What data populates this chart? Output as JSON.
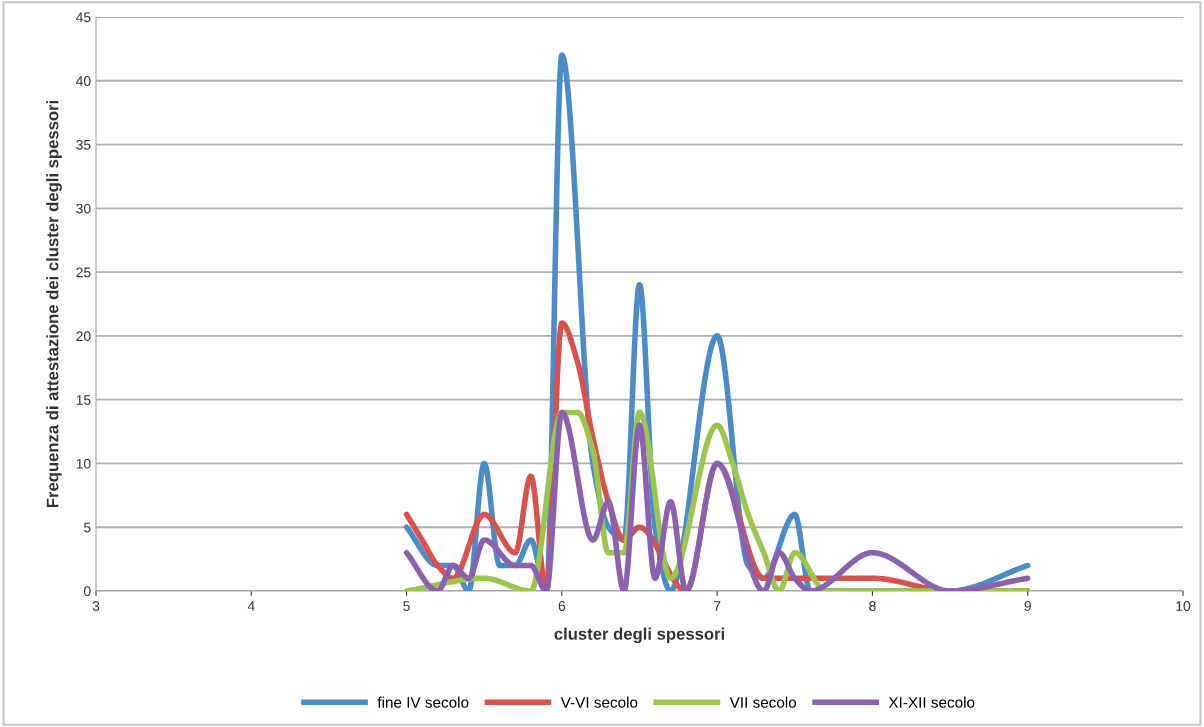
{
  "chart_data": {
    "type": "line",
    "xlabel": "cluster degli spessori",
    "ylabel": "Frequenza di attestazione dei cluster degli spessori",
    "xlim": [
      3,
      10
    ],
    "xticks": [
      3,
      4,
      5,
      6,
      7,
      8,
      9,
      10
    ],
    "ylim": [
      0,
      45
    ],
    "yticks": [
      0,
      5,
      10,
      15,
      20,
      25,
      30,
      35,
      40,
      45
    ],
    "grid": "y",
    "legend": "bottom",
    "marker": "none",
    "line_style": "solid",
    "series": [
      {
        "name": "fine IV secolo",
        "color": "#4a8bc9",
        "x": [
          5,
          5.2,
          5.3,
          5.4,
          5.5,
          5.6,
          5.7,
          5.8,
          5.9,
          6.0,
          6.2,
          6.3,
          6.4,
          6.5,
          6.6,
          6.7,
          7.0,
          7.2,
          7.3,
          7.5,
          7.6,
          8.5,
          9
        ],
        "values": [
          5,
          2,
          2,
          0,
          10,
          2,
          2,
          4,
          0,
          42,
          10,
          5,
          4,
          24,
          5,
          0,
          20,
          2,
          1,
          6,
          0,
          0,
          2
        ]
      },
      {
        "name": "V-VI secolo",
        "color": "#d8524b",
        "x": [
          5,
          5.1,
          5.2,
          5.3,
          5.5,
          5.7,
          5.8,
          5.9,
          6.0,
          6.1,
          6.2,
          6.3,
          6.4,
          6.5,
          6.8,
          7.0,
          7.3,
          7.5,
          8,
          8.5,
          9
        ],
        "values": [
          6,
          4,
          2,
          1,
          6,
          3,
          9,
          0,
          21,
          18,
          12,
          7,
          4,
          5,
          0,
          10,
          1,
          1,
          1,
          0,
          0
        ]
      },
      {
        "name": "VII secolo",
        "color": "#9cc54f",
        "x": [
          5,
          5.5,
          5.8,
          6.0,
          6.1,
          6.2,
          6.3,
          6.4,
          6.5,
          6.7,
          7.0,
          7.1,
          7.2,
          7.3,
          7.4,
          7.5,
          7.7,
          9
        ],
        "values": [
          0,
          1,
          0,
          14,
          14,
          11,
          3,
          3,
          14,
          1,
          13,
          10,
          6,
          3,
          0,
          3,
          0,
          0
        ]
      },
      {
        "name": "XI-XII secolo",
        "color": "#8a61ae",
        "x": [
          5,
          5.2,
          5.3,
          5.4,
          5.5,
          5.7,
          5.8,
          5.9,
          6.0,
          6.2,
          6.3,
          6.4,
          6.5,
          6.6,
          6.7,
          6.8,
          7.0,
          7.3,
          7.4,
          7.5,
          7.6,
          8,
          8.5,
          9
        ],
        "values": [
          3,
          0,
          2,
          1,
          4,
          2,
          2,
          0,
          14,
          4,
          7,
          0,
          13,
          1,
          7,
          0,
          10,
          0,
          3,
          1,
          0,
          3,
          0,
          1
        ]
      }
    ]
  }
}
